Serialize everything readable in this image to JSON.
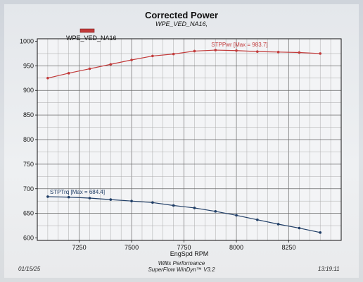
{
  "chart_data": {
    "type": "line",
    "title": "Corrected Power",
    "subtitle": "WPE_VED_NA16,",
    "xlabel": "EngSpd RPM",
    "ylabel": "",
    "xlim": [
      7050,
      8500
    ],
    "ylim": [
      595,
      1005
    ],
    "x_ticks": [
      7250,
      7500,
      7750,
      8000,
      8250
    ],
    "y_ticks": [
      600,
      650,
      700,
      750,
      800,
      850,
      900,
      950,
      1000
    ],
    "grid": true,
    "legend": {
      "position": "top-left",
      "entries": [
        "WPE_VED_NA16"
      ]
    },
    "x": [
      7100,
      7200,
      7300,
      7400,
      7500,
      7600,
      7700,
      7800,
      7900,
      8000,
      8100,
      8200,
      8300,
      8400
    ],
    "series": [
      {
        "name": "STPPwr",
        "annotation": "STPPwr [Max = 983.7]",
        "color": "#c23a3a",
        "values": [
          925,
          935,
          944,
          953,
          962,
          970,
          974,
          980,
          982,
          981,
          979,
          978,
          977,
          975
        ]
      },
      {
        "name": "STPTrq",
        "annotation": "STPTrq [Max = 684.4]",
        "color": "#1f3d66",
        "values": [
          684,
          683,
          681,
          678,
          675,
          672,
          666,
          661,
          654,
          646,
          637,
          628,
          620,
          611
        ]
      }
    ]
  },
  "footer": {
    "date": "01/15/25",
    "company": "Willis Performance",
    "software": "SuperFlow WinDyn™ V3.2",
    "time": "13:19:11"
  }
}
